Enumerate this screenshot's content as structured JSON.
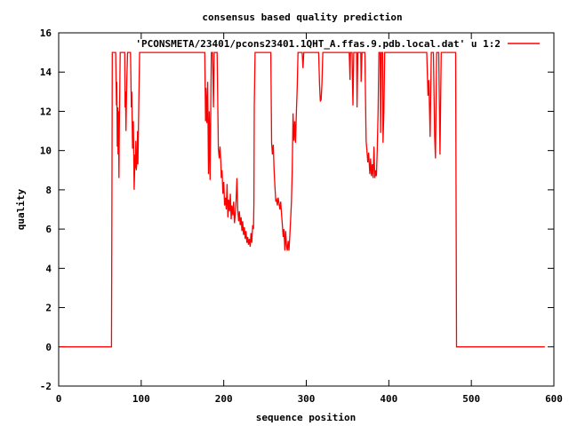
{
  "window": {
    "background": "#ffffff"
  },
  "colors": {
    "line": "#ff0000",
    "axis": "#000000",
    "text": "#000000",
    "background": "#ffffff"
  },
  "chart_data": {
    "type": "line",
    "title": "consensus based quality prediction",
    "xlabel": "sequence position",
    "ylabel": "quality",
    "xlim": [
      0,
      600
    ],
    "ylim": [
      -2,
      16
    ],
    "xticks": [
      0,
      100,
      200,
      300,
      400,
      500,
      600
    ],
    "yticks": [
      -2,
      0,
      2,
      4,
      6,
      8,
      10,
      12,
      14,
      16
    ],
    "grid": false,
    "legend": {
      "position": "top-right-inside",
      "entries": [
        {
          "label": "'PCONSMETA/23401/pcons23401.1QHT_A.ffas.9.pdb.local.dat' u 1:2",
          "color": "#ff0000"
        }
      ]
    },
    "series": [
      {
        "name": "'PCONSMETA/23401/pcons23401.1QHT_A.ffas.9.pdb.local.dat' u 1:2",
        "color": "#ff0000",
        "points": [
          [
            1,
            0
          ],
          [
            63,
            0
          ],
          [
            64,
            0
          ],
          [
            64.5,
            7.5
          ],
          [
            65,
            15
          ],
          [
            69,
            15
          ],
          [
            70,
            12.3
          ],
          [
            70.5,
            13.5
          ],
          [
            71,
            10.2
          ],
          [
            71.5,
            12.2
          ],
          [
            72,
            9.8
          ],
          [
            72.5,
            12
          ],
          [
            73,
            8.6
          ],
          [
            73.5,
            11
          ],
          [
            74.5,
            15
          ],
          [
            80,
            15
          ],
          [
            80.5,
            12.2
          ],
          [
            81,
            13
          ],
          [
            81.5,
            11
          ],
          [
            82,
            12.2
          ],
          [
            82.5,
            13.5
          ],
          [
            83.5,
            15
          ],
          [
            87,
            15
          ],
          [
            88,
            12.2
          ],
          [
            88.5,
            13
          ],
          [
            89.5,
            10.1
          ],
          [
            90.5,
            11.5
          ],
          [
            91.5,
            8
          ],
          [
            92.5,
            9.8
          ],
          [
            93,
            9.1
          ],
          [
            93.5,
            10.5
          ],
          [
            94,
            9
          ],
          [
            95,
            9.6
          ],
          [
            95.5,
            11
          ],
          [
            96,
            9.3
          ],
          [
            97,
            12
          ],
          [
            98,
            15
          ],
          [
            177,
            15
          ],
          [
            178,
            11.5
          ],
          [
            178.5,
            13.2
          ],
          [
            179.5,
            11.4
          ],
          [
            180.5,
            13.5
          ],
          [
            181.5,
            8.8
          ],
          [
            182.5,
            12
          ],
          [
            183.5,
            8.5
          ],
          [
            185,
            15
          ],
          [
            186.5,
            15
          ],
          [
            187.5,
            12.2
          ],
          [
            188.5,
            15
          ],
          [
            192,
            15
          ],
          [
            193.5,
            10.1
          ],
          [
            194.5,
            9.6
          ],
          [
            195.5,
            10.2
          ],
          [
            196.5,
            9.4
          ],
          [
            197,
            8.6
          ],
          [
            198,
            9
          ],
          [
            199,
            7.8
          ],
          [
            200,
            8.4
          ],
          [
            201,
            7.2
          ],
          [
            202,
            7.6
          ],
          [
            203,
            7
          ],
          [
            204,
            8.3
          ],
          [
            205,
            6.6
          ],
          [
            206,
            7.5
          ],
          [
            207,
            6.9
          ],
          [
            208,
            7.8
          ],
          [
            209,
            6.5
          ],
          [
            210,
            7.2
          ],
          [
            211,
            6.7
          ],
          [
            212,
            7.4
          ],
          [
            213,
            6.3
          ],
          [
            214,
            6.8
          ],
          [
            215,
            7.5
          ],
          [
            216,
            8.6
          ],
          [
            217,
            7
          ],
          [
            218,
            6.4
          ],
          [
            219,
            6.9
          ],
          [
            220,
            6.2
          ],
          [
            221,
            6.6
          ],
          [
            222,
            5.9
          ],
          [
            223,
            6.4
          ],
          [
            224,
            5.7
          ],
          [
            225,
            6.1
          ],
          [
            226,
            5.5
          ],
          [
            227,
            5.9
          ],
          [
            228,
            5.3
          ],
          [
            229,
            5.6
          ],
          [
            230,
            5.2
          ],
          [
            231,
            5.5
          ],
          [
            232,
            5.1
          ],
          [
            233,
            5.8
          ],
          [
            234,
            5.3
          ],
          [
            235,
            6.2
          ],
          [
            236,
            6
          ],
          [
            236.5,
            7.3
          ],
          [
            237,
            12.2
          ],
          [
            238,
            15
          ],
          [
            257,
            15
          ],
          [
            258,
            10.4
          ],
          [
            259,
            9.8
          ],
          [
            260,
            10.3
          ],
          [
            261,
            9
          ],
          [
            262,
            8.2
          ],
          [
            263,
            7.4
          ],
          [
            264,
            7.5
          ],
          [
            265,
            7.2
          ],
          [
            266,
            7.6
          ],
          [
            267,
            7.3
          ],
          [
            268,
            7
          ],
          [
            269,
            7.4
          ],
          [
            270,
            6.8
          ],
          [
            271,
            6.2
          ],
          [
            272,
            5.6
          ],
          [
            273,
            6
          ],
          [
            274,
            4.9
          ],
          [
            275,
            5.9
          ],
          [
            276,
            5.2
          ],
          [
            277,
            4.9
          ],
          [
            278,
            5.4
          ],
          [
            279,
            4.9
          ],
          [
            280,
            5.6
          ],
          [
            281,
            6.5
          ],
          [
            282,
            7.4
          ],
          [
            283,
            9
          ],
          [
            284,
            11.9
          ],
          [
            285,
            10.5
          ],
          [
            286,
            11.5
          ],
          [
            287,
            10.4
          ],
          [
            288,
            12
          ],
          [
            289,
            13.2
          ],
          [
            290,
            15
          ],
          [
            295,
            15
          ],
          [
            296,
            14.2
          ],
          [
            297,
            15
          ],
          [
            315,
            15
          ],
          [
            316,
            13.4
          ],
          [
            317,
            12.5
          ],
          [
            318,
            12.6
          ],
          [
            319,
            13.4
          ],
          [
            320,
            15
          ],
          [
            352,
            15
          ],
          [
            353,
            13.6
          ],
          [
            353.5,
            15
          ],
          [
            355.5,
            15
          ],
          [
            356,
            13.4
          ],
          [
            356.5,
            12.3
          ],
          [
            357.5,
            15
          ],
          [
            361,
            15
          ],
          [
            361.5,
            12.2
          ],
          [
            362.5,
            15
          ],
          [
            366,
            15
          ],
          [
            366.5,
            13.5
          ],
          [
            367.5,
            15
          ],
          [
            371,
            15
          ],
          [
            372.5,
            10.5
          ],
          [
            373.5,
            10
          ],
          [
            374.5,
            9.4
          ],
          [
            375.5,
            9.9
          ],
          [
            376.5,
            9.2
          ],
          [
            377,
            8.8
          ],
          [
            378,
            9.6
          ],
          [
            379,
            8.7
          ],
          [
            380,
            9.3
          ],
          [
            381,
            8.6
          ],
          [
            382,
            10.2
          ],
          [
            383,
            8.6
          ],
          [
            384,
            9
          ],
          [
            385,
            8.7
          ],
          [
            386,
            10
          ],
          [
            387,
            12
          ],
          [
            388,
            15
          ],
          [
            389.5,
            15
          ],
          [
            390,
            10.9
          ],
          [
            391,
            15
          ],
          [
            392.5,
            15
          ],
          [
            393,
            10.4
          ],
          [
            394,
            12
          ],
          [
            395,
            15
          ],
          [
            446,
            15
          ],
          [
            447.5,
            12.8
          ],
          [
            448.5,
            13.6
          ],
          [
            450,
            10.7
          ],
          [
            451.5,
            15
          ],
          [
            454,
            15
          ],
          [
            455.5,
            10.7
          ],
          [
            456.5,
            9.6
          ],
          [
            458,
            15
          ],
          [
            460.5,
            15
          ],
          [
            462,
            9.8
          ],
          [
            463.5,
            15
          ],
          [
            468,
            15
          ],
          [
            480,
            15
          ],
          [
            481,
            15
          ],
          [
            481.5,
            7.4
          ],
          [
            482,
            0
          ],
          [
            589,
            0
          ]
        ]
      }
    ]
  }
}
